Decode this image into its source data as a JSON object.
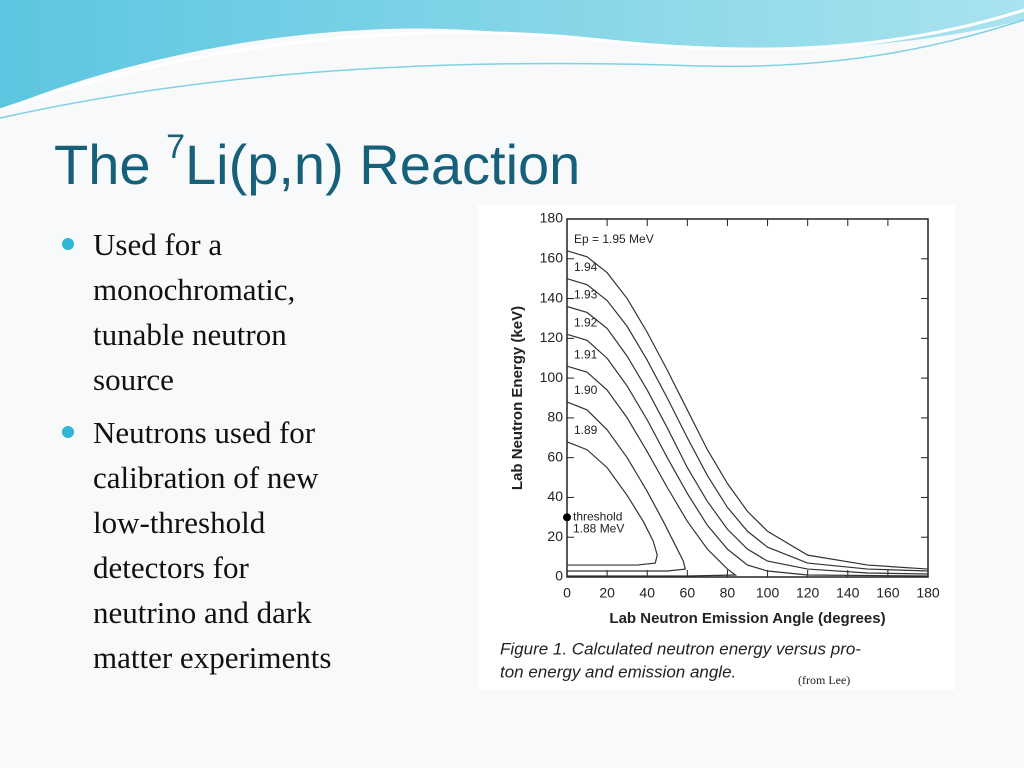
{
  "slide": {
    "title": {
      "before": "The ",
      "sup": "7",
      "after": "Li(p,n) Reaction"
    },
    "bullets": [
      {
        "lines": [
          "Used for a",
          "monochromatic,",
          "tunable neutron",
          "source"
        ]
      },
      {
        "lines": [
          "Neutrons used for",
          "calibration of new",
          "low-threshold",
          "detectors for",
          "neutrino and dark",
          "matter experiments"
        ]
      }
    ],
    "caption": [
      "Figure 1.  Calculated neutron energy versus pro-",
      "ton energy and emission angle."
    ],
    "credit": "(from Lee)"
  },
  "chart_data": {
    "type": "line",
    "x_label": "Lab Neutron Emission Angle (degrees)",
    "y_label": "Lab Neutron Energy (keV)",
    "xlim": [
      0,
      180
    ],
    "ylim": [
      0,
      180
    ],
    "xticks": [
      0,
      20,
      40,
      60,
      80,
      100,
      120,
      140,
      160,
      180
    ],
    "yticks": [
      0,
      20,
      40,
      60,
      80,
      100,
      120,
      140,
      160,
      180
    ],
    "color": "#333333",
    "series": [
      {
        "name": "Ep = 1.95 MeV",
        "x": [
          0,
          10,
          20,
          30,
          40,
          50,
          60,
          70,
          80,
          90,
          100,
          120,
          150,
          180
        ],
        "values": [
          164,
          161,
          153,
          140,
          123,
          104,
          84,
          64,
          47,
          33,
          23,
          11,
          6,
          4
        ]
      },
      {
        "name": "1.94",
        "x": [
          0,
          10,
          20,
          30,
          40,
          50,
          60,
          70,
          80,
          90,
          100,
          120,
          150,
          180
        ],
        "values": [
          150,
          147,
          139,
          126,
          109,
          90,
          70,
          51,
          35,
          23,
          15,
          7,
          4,
          3
        ]
      },
      {
        "name": "1.93",
        "x": [
          0,
          10,
          20,
          30,
          40,
          50,
          60,
          70,
          80,
          90,
          100,
          120,
          150,
          180
        ],
        "values": [
          136,
          133,
          125,
          111,
          94,
          75,
          55,
          38,
          24,
          14,
          8,
          4,
          2,
          1.5
        ]
      },
      {
        "name": "1.92",
        "x": [
          0,
          10,
          20,
          30,
          40,
          50,
          60,
          70,
          80,
          90,
          100,
          120,
          180
        ],
        "values": [
          122,
          119,
          110,
          96,
          79,
          60,
          42,
          26,
          14,
          6,
          3,
          1,
          0.5
        ]
      },
      {
        "name": "1.91",
        "x": [
          0,
          10,
          20,
          30,
          40,
          50,
          60,
          70,
          80,
          84,
          60,
          30,
          0
        ],
        "values": [
          106,
          103,
          94,
          80,
          63,
          45,
          28,
          14,
          4,
          1,
          0.5,
          0.5,
          0.5
        ]
      },
      {
        "name": "1.90",
        "x": [
          0,
          10,
          20,
          30,
          40,
          48,
          54,
          58,
          59,
          50,
          30,
          0
        ],
        "values": [
          88,
          84,
          74,
          60,
          43,
          28,
          16,
          8,
          4,
          3,
          3,
          3
        ]
      },
      {
        "name": "1.89",
        "x": [
          0,
          10,
          20,
          30,
          38,
          43,
          45,
          44,
          35,
          20,
          0
        ],
        "values": [
          68,
          64,
          55,
          41,
          28,
          18,
          11,
          7,
          6,
          6,
          6
        ]
      }
    ],
    "threshold": {
      "x": 0,
      "y": 30,
      "label": "threshold",
      "label2": "1.88 MeV"
    }
  }
}
